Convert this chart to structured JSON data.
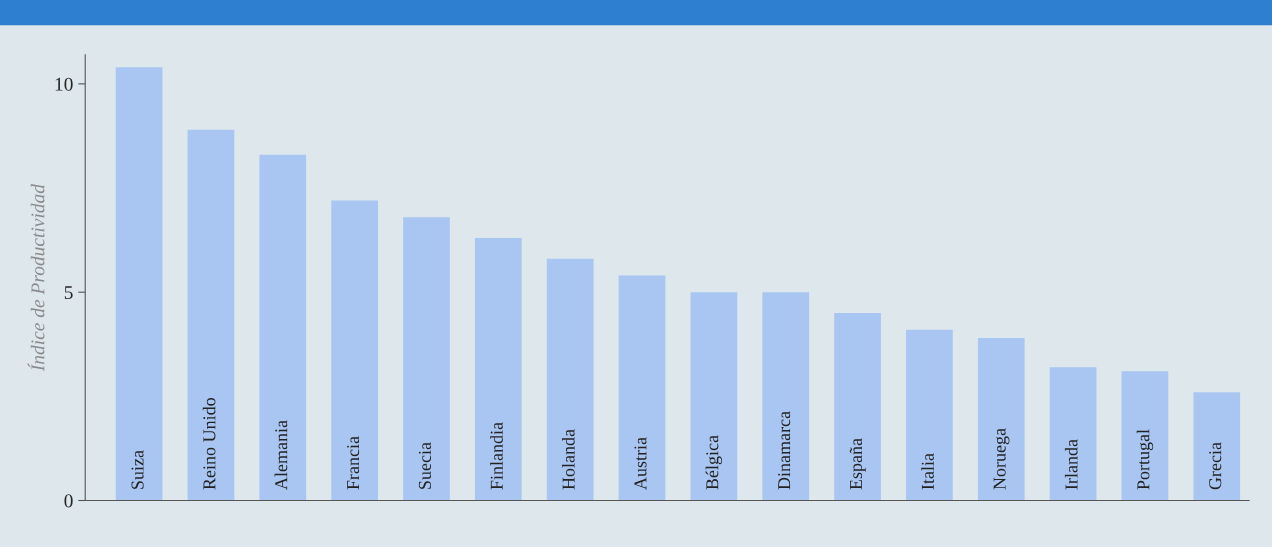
{
  "chart_data": {
    "type": "bar",
    "ylabel": "Índice de Productividad",
    "categories": [
      "Suiza",
      "Reino Unido",
      "Alemania",
      "Francia",
      "Suecia",
      "Finlandia",
      "Holanda",
      "Austria",
      "Bélgica",
      "Dinamarca",
      "España",
      "Italia",
      "Noruega",
      "Irlanda",
      "Portugal",
      "Grecia"
    ],
    "values": [
      10.4,
      8.9,
      8.3,
      7.2,
      6.8,
      6.3,
      5.8,
      5.4,
      5.0,
      5.0,
      4.5,
      4.1,
      3.9,
      3.2,
      3.1,
      2.6
    ],
    "color": "#a9c6f2",
    "ylim": [
      0,
      10.7
    ],
    "yticks": [
      0,
      5,
      10
    ],
    "grid": false
  }
}
